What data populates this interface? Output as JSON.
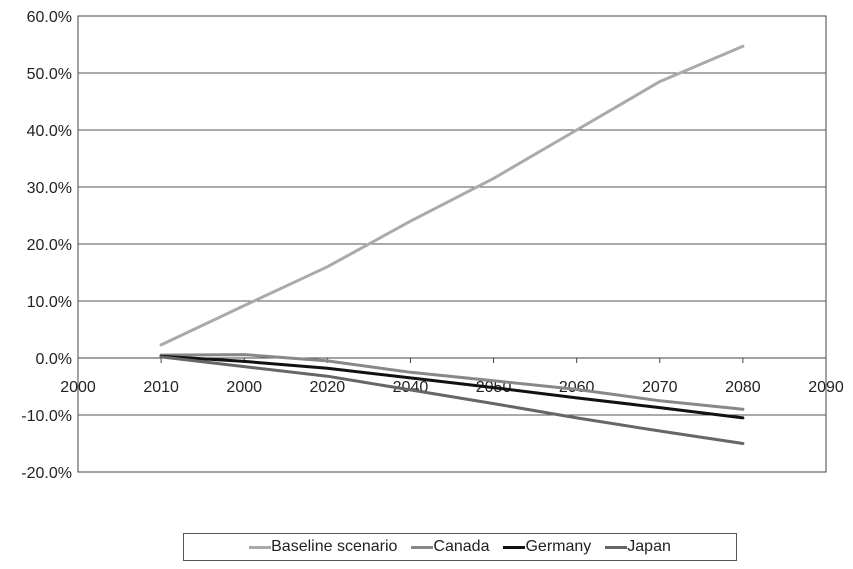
{
  "chart_data": {
    "type": "line",
    "title": "",
    "xlabel": "",
    "ylabel": "",
    "xlim": [
      2000,
      2090
    ],
    "ylim": [
      -20,
      60
    ],
    "x_tick_labels": [
      "2000",
      "2010",
      "2000",
      "2020",
      "2040",
      "2050",
      "2060",
      "2070",
      "2080",
      "2090"
    ],
    "y_tick_labels": [
      "60.0%",
      "50.0%",
      "40.0%",
      "30.0%",
      "20.0%",
      "10.0%",
      "0.0%",
      "-10.0%",
      "-20.0%"
    ],
    "y_ticks": [
      60,
      50,
      40,
      30,
      20,
      10,
      0,
      -10,
      -20
    ],
    "grid": "horizontal",
    "legend_position": "bottom",
    "x": [
      2010,
      2020,
      2030,
      2040,
      2050,
      2060,
      2070,
      2080
    ],
    "series": [
      {
        "name": "Baseline scenario",
        "color": "#aaaaaa",
        "values": [
          2.3,
          9.2,
          16.0,
          24.0,
          31.5,
          40.0,
          48.5,
          54.7
        ]
      },
      {
        "name": "Canada",
        "color": "#888888",
        "values": [
          0.5,
          0.6,
          -0.5,
          -2.5,
          -4.0,
          -5.5,
          -7.5,
          -9.0
        ]
      },
      {
        "name": "Germany",
        "color": "#111111",
        "values": [
          0.3,
          -0.6,
          -1.8,
          -3.5,
          -5.2,
          -7.0,
          -8.7,
          -10.5
        ]
      },
      {
        "name": "Japan",
        "color": "#666666",
        "values": [
          0.2,
          -1.5,
          -3.2,
          -5.6,
          -8.0,
          -10.5,
          -12.8,
          -15.0
        ]
      }
    ]
  }
}
